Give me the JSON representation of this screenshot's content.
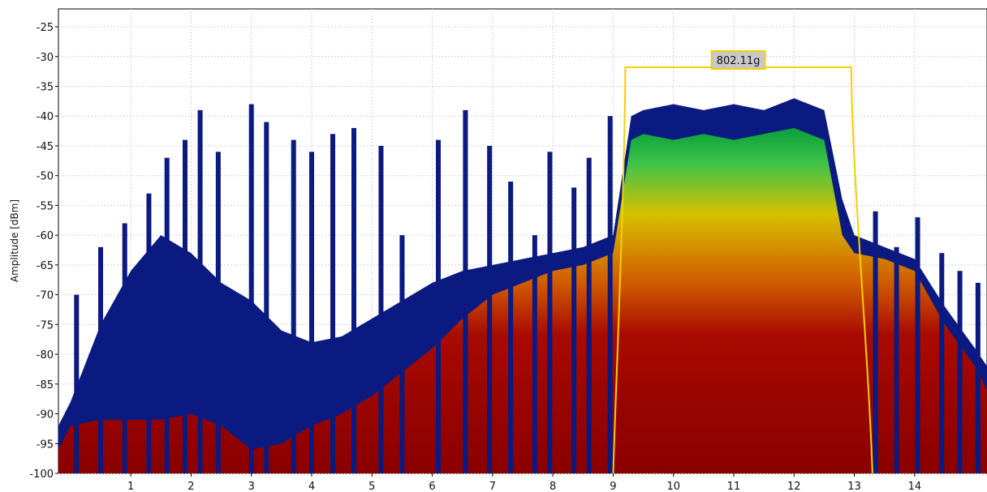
{
  "chart_data": {
    "type": "area",
    "title": "",
    "xlabel": "",
    "ylabel": "Amplitude [dBm]",
    "xlim": [
      -0.2,
      15.2
    ],
    "ylim": [
      -100,
      -22
    ],
    "y_ticks": [
      -100,
      -95,
      -90,
      -85,
      -80,
      -75,
      -70,
      -65,
      -60,
      -55,
      -50,
      -45,
      -40,
      -35,
      -30,
      -25
    ],
    "y_tick_labels": [
      "-100",
      "-95",
      "-90",
      "-85",
      "-80",
      "-75",
      "-70",
      "-65",
      "-60",
      "-55",
      "-50",
      "-45",
      "-40",
      "-35",
      "-30",
      "-25"
    ],
    "x_ticks": [
      1,
      2,
      3,
      4,
      5,
      6,
      7,
      8,
      9,
      10,
      11,
      12,
      13,
      14
    ],
    "x_tick_labels": [
      "1",
      "2",
      "3",
      "4",
      "5",
      "6",
      "7",
      "8",
      "9",
      "10",
      "11",
      "12",
      "13",
      "14"
    ],
    "grid": true,
    "colors": {
      "peak_hold": "#0a1a80",
      "density_high": "#a80a00",
      "density_mid": "#d8c000",
      "density_low": "#0a9e3a",
      "band_outline": "#f5d000",
      "band_label_bg": "#c8c8c8"
    },
    "series": [
      {
        "x": [
          -0.2,
          0.0,
          0.5,
          1.0,
          1.5,
          2.0,
          2.5,
          3.0,
          3.5,
          4.0,
          4.5,
          5.0,
          5.5,
          6.0,
          6.5,
          7.0,
          7.5,
          8.0,
          8.5,
          9.0,
          9.3,
          9.5,
          10.0,
          10.5,
          11.0,
          11.5,
          12.0,
          12.5,
          12.8,
          13.0,
          13.5,
          14.0,
          14.5,
          15.0,
          15.2
        ],
        "values": [
          -92,
          -88,
          -75,
          -66,
          -60,
          -63,
          -68,
          -71,
          -76,
          -78,
          -77,
          -74,
          -71,
          -68,
          -66,
          -65,
          -64,
          -63,
          -62,
          -60,
          -40,
          -39,
          -38,
          -39,
          -38,
          -39,
          -37,
          -39,
          -54,
          -60,
          -62,
          -64,
          -72,
          -79,
          -82
        ]
      },
      {
        "x": [
          -0.2,
          0.0,
          0.5,
          1.0,
          1.5,
          2.0,
          2.5,
          3.0,
          3.5,
          4.0,
          4.5,
          5.0,
          5.5,
          6.0,
          6.5,
          7.0,
          7.5,
          8.0,
          8.5,
          9.0,
          9.3,
          9.5,
          10.0,
          10.5,
          11.0,
          11.5,
          12.0,
          12.5,
          12.8,
          13.0,
          13.5,
          14.0,
          14.5,
          15.0,
          15.2
        ],
        "values": [
          -96,
          -92,
          -91,
          -91,
          -91,
          -90,
          -92,
          -96,
          -95,
          -92,
          -90,
          -87,
          -83,
          -79,
          -74,
          -70,
          -68,
          -66,
          -65,
          -63,
          -44,
          -43,
          -44,
          -43,
          -44,
          -43,
          -42,
          -44,
          -60,
          -63,
          -64,
          -66,
          -75,
          -82,
          -86
        ]
      }
    ],
    "peaks": [
      {
        "x": 0.1,
        "value": -70
      },
      {
        "x": 0.5,
        "value": -62
      },
      {
        "x": 0.9,
        "value": -58
      },
      {
        "x": 1.3,
        "value": -53
      },
      {
        "x": 1.6,
        "value": -47
      },
      {
        "x": 1.9,
        "value": -44
      },
      {
        "x": 2.15,
        "value": -39
      },
      {
        "x": 2.45,
        "value": -46
      },
      {
        "x": 3.0,
        "value": -38
      },
      {
        "x": 3.25,
        "value": -41
      },
      {
        "x": 3.7,
        "value": -44
      },
      {
        "x": 4.0,
        "value": -46
      },
      {
        "x": 4.35,
        "value": -43
      },
      {
        "x": 4.7,
        "value": -42
      },
      {
        "x": 5.15,
        "value": -45
      },
      {
        "x": 5.5,
        "value": -60
      },
      {
        "x": 6.1,
        "value": -44
      },
      {
        "x": 6.55,
        "value": -39
      },
      {
        "x": 6.95,
        "value": -45
      },
      {
        "x": 7.3,
        "value": -51
      },
      {
        "x": 7.7,
        "value": -60
      },
      {
        "x": 7.95,
        "value": -46
      },
      {
        "x": 8.35,
        "value": -52
      },
      {
        "x": 8.6,
        "value": -47
      },
      {
        "x": 8.95,
        "value": -40
      },
      {
        "x": 13.35,
        "value": -56
      },
      {
        "x": 13.7,
        "value": -62
      },
      {
        "x": 14.05,
        "value": -57
      },
      {
        "x": 14.45,
        "value": -63
      },
      {
        "x": 14.75,
        "value": -66
      },
      {
        "x": 15.05,
        "value": -68
      }
    ],
    "annotations": [
      {
        "label": "802.11g",
        "x_start": 9.2,
        "x_end": 12.95,
        "x_base_start": 9.0,
        "x_base_end": 13.3,
        "top_value": -31.8
      }
    ]
  }
}
